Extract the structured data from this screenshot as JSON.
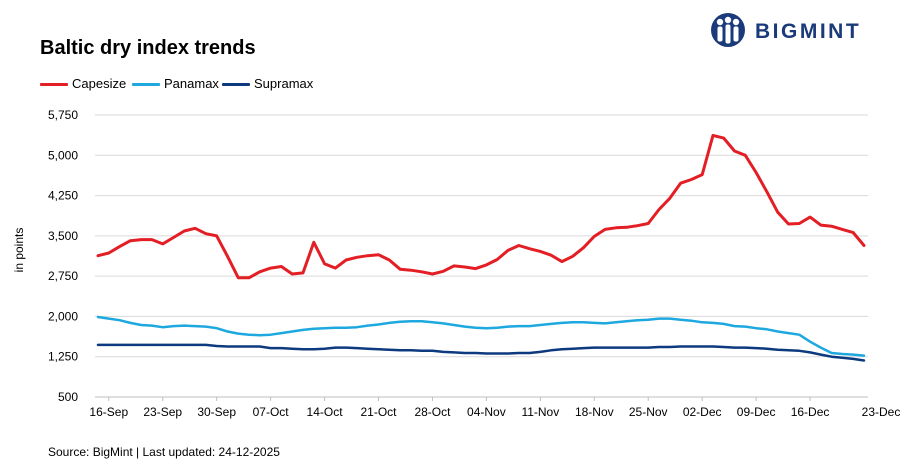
{
  "brand": {
    "name": "BIGMINT",
    "logo_icon": "bigmint-people-logo-icon",
    "color": "#1a3a7a"
  },
  "footer": {
    "source": "Source: BigMint | Last updated: 24-12-2025"
  },
  "chart_data": {
    "type": "line",
    "title": "Baltic dry index trends",
    "xlabel": "",
    "ylabel": "in points",
    "ylim": [
      500,
      5750
    ],
    "yticks": [
      "5,750",
      "5,000",
      "4,250",
      "3,500",
      "2,750",
      "2,000",
      "1,250",
      "500"
    ],
    "ytick_values": [
      5750,
      5000,
      4250,
      3500,
      2750,
      2000,
      1250,
      500
    ],
    "xticks": [
      "16-Sep",
      "23-Sep",
      "30-Sep",
      "07-Oct",
      "14-Oct",
      "21-Oct",
      "28-Oct",
      "04-Nov",
      "11-Nov",
      "18-Nov",
      "25-Nov",
      "02-Dec",
      "09-Dec",
      "16-Dec",
      "23-Dec"
    ],
    "grid": true,
    "legend_position": "top-left",
    "x": [
      "15-Sep",
      "16-Sep",
      "17-Sep",
      "18-Sep",
      "19-Sep",
      "22-Sep",
      "23-Sep",
      "24-Sep",
      "25-Sep",
      "26-Sep",
      "29-Sep",
      "30-Sep",
      "01-Oct",
      "02-Oct",
      "03-Oct",
      "06-Oct",
      "07-Oct",
      "08-Oct",
      "09-Oct",
      "10-Oct",
      "13-Oct",
      "14-Oct",
      "15-Oct",
      "16-Oct",
      "17-Oct",
      "20-Oct",
      "21-Oct",
      "22-Oct",
      "23-Oct",
      "24-Oct",
      "27-Oct",
      "28-Oct",
      "29-Oct",
      "30-Oct",
      "31-Oct",
      "03-Nov",
      "04-Nov",
      "05-Nov",
      "06-Nov",
      "07-Nov",
      "10-Nov",
      "11-Nov",
      "12-Nov",
      "13-Nov",
      "14-Nov",
      "17-Nov",
      "18-Nov",
      "19-Nov",
      "20-Nov",
      "21-Nov",
      "24-Nov",
      "25-Nov",
      "26-Nov",
      "27-Nov",
      "28-Nov",
      "01-Dec",
      "02-Dec",
      "03-Dec",
      "04-Dec",
      "05-Dec",
      "08-Dec",
      "09-Dec",
      "10-Dec",
      "11-Dec",
      "12-Dec",
      "15-Dec",
      "16-Dec",
      "17-Dec",
      "18-Dec",
      "19-Dec",
      "22-Dec",
      "23-Dec"
    ],
    "series": [
      {
        "name": "Capesize",
        "color": "#e31e24",
        "values": [
          3130,
          3180,
          3300,
          3410,
          3430,
          3430,
          3350,
          3470,
          3590,
          3640,
          3540,
          3500,
          3120,
          2720,
          2720,
          2830,
          2900,
          2930,
          2790,
          2810,
          3380,
          2980,
          2900,
          3050,
          3100,
          3130,
          3150,
          3050,
          2880,
          2860,
          2830,
          2790,
          2840,
          2940,
          2920,
          2890,
          2960,
          3060,
          3230,
          3320,
          3260,
          3210,
          3140,
          3020,
          3120,
          3280,
          3490,
          3620,
          3650,
          3660,
          3690,
          3730,
          3990,
          4200,
          4480,
          4550,
          4640,
          5370,
          5320,
          5080,
          5000,
          4680,
          4320,
          3940,
          3720,
          3730,
          3850,
          3700,
          3680,
          3620,
          3560,
          3320
        ]
      },
      {
        "name": "Panamax",
        "color": "#1ea8e0",
        "values": [
          1990,
          1960,
          1930,
          1880,
          1840,
          1830,
          1800,
          1820,
          1830,
          1820,
          1810,
          1780,
          1720,
          1680,
          1660,
          1650,
          1660,
          1690,
          1720,
          1750,
          1770,
          1780,
          1790,
          1790,
          1800,
          1830,
          1850,
          1880,
          1900,
          1910,
          1910,
          1890,
          1870,
          1840,
          1810,
          1790,
          1780,
          1790,
          1810,
          1820,
          1820,
          1840,
          1860,
          1880,
          1890,
          1890,
          1880,
          1870,
          1890,
          1910,
          1930,
          1940,
          1960,
          1960,
          1940,
          1920,
          1890,
          1880,
          1860,
          1820,
          1810,
          1780,
          1760,
          1720,
          1690,
          1660,
          1530,
          1420,
          1320,
          1300,
          1290,
          1270
        ]
      },
      {
        "name": "Supramax",
        "color": "#0d3a7e",
        "values": [
          1470,
          1470,
          1470,
          1470,
          1470,
          1470,
          1470,
          1470,
          1470,
          1470,
          1470,
          1450,
          1440,
          1440,
          1440,
          1440,
          1410,
          1410,
          1400,
          1390,
          1390,
          1400,
          1420,
          1420,
          1410,
          1400,
          1390,
          1380,
          1370,
          1370,
          1360,
          1360,
          1340,
          1330,
          1320,
          1320,
          1310,
          1310,
          1310,
          1320,
          1320,
          1340,
          1370,
          1390,
          1400,
          1410,
          1420,
          1420,
          1420,
          1420,
          1420,
          1420,
          1430,
          1430,
          1440,
          1440,
          1440,
          1440,
          1430,
          1420,
          1420,
          1410,
          1400,
          1380,
          1370,
          1360,
          1330,
          1290,
          1250,
          1230,
          1210,
          1180
        ]
      }
    ]
  }
}
